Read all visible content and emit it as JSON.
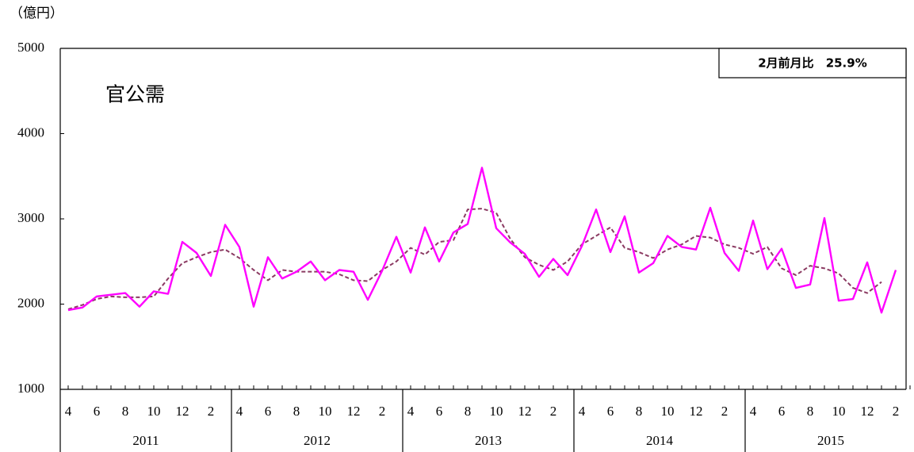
{
  "chart_data": {
    "type": "line",
    "unit_label": "（億円）",
    "title": "官公需",
    "annotation": "2月前月比　25.9%",
    "categories": [
      "4",
      null,
      "6",
      null,
      "8",
      null,
      "10",
      null,
      "12",
      null,
      "2",
      null,
      "4",
      null,
      "6",
      null,
      "8",
      null,
      "10",
      null,
      "12",
      null,
      "2",
      null,
      "4",
      null,
      "6",
      null,
      "8",
      null,
      "10",
      null,
      "12",
      null,
      "2",
      null,
      "4",
      null,
      "6",
      null,
      "8",
      null,
      "10",
      null,
      "12",
      null,
      "2",
      null,
      "4",
      null,
      "6",
      null,
      "8",
      null,
      "10",
      null,
      "12",
      null,
      "2",
      null
    ],
    "groups": [
      "2011",
      "2012",
      "2013",
      "2014",
      "2015"
    ],
    "series": [
      {
        "color": "#ff00ff",
        "dash": false,
        "values": [
          1930,
          1960,
          2090,
          2110,
          2130,
          1970,
          2150,
          2120,
          2730,
          2600,
          2330,
          2930,
          2670,
          1970,
          2550,
          2300,
          2380,
          2500,
          2280,
          2400,
          2380,
          2050,
          2390,
          2790,
          2370,
          2900,
          2500,
          2840,
          2940,
          3600,
          2890,
          2720,
          2590,
          2320,
          2530,
          2340,
          2680,
          3110,
          2610,
          3030,
          2370,
          2480,
          2800,
          2670,
          2640,
          3130,
          2600,
          2390,
          2980,
          2410,
          2650,
          2190,
          2230,
          3010,
          2040,
          2060,
          2490,
          1900,
          2400,
          null
        ]
      },
      {
        "color": "#8b3a62",
        "dash": true,
        "values": [
          1940,
          1990,
          2060,
          2090,
          2080,
          2080,
          2090,
          2300,
          2480,
          2550,
          2610,
          2640,
          2540,
          2400,
          2280,
          2400,
          2380,
          2380,
          2380,
          2350,
          2280,
          2270,
          2400,
          2500,
          2660,
          2580,
          2730,
          2750,
          3110,
          3120,
          3070,
          2760,
          2550,
          2460,
          2400,
          2500,
          2700,
          2800,
          2900,
          2660,
          2610,
          2540,
          2640,
          2700,
          2800,
          2780,
          2700,
          2660,
          2590,
          2670,
          2420,
          2340,
          2450,
          2420,
          2360,
          2190,
          2130,
          2260,
          null,
          null
        ]
      }
    ],
    "ylim": [
      1000,
      5000
    ],
    "yticks": [
      1000,
      2000,
      3000,
      4000,
      5000
    ],
    "grid": false
  }
}
